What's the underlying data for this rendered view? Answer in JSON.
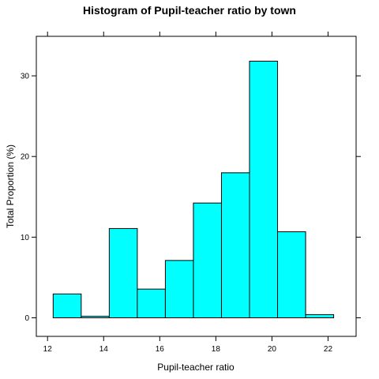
{
  "chart_data": {
    "type": "bar",
    "title": "Histogram of Pupil-teacher ratio by town",
    "xlabel": "Pupil-teacher ratio",
    "ylabel": "Total Proportion (%)",
    "bin_edges": [
      12.2,
      13.2,
      14.2,
      15.2,
      16.2,
      17.2,
      18.2,
      19.2,
      20.2,
      21.2,
      22.2
    ],
    "values": [
      2.96,
      0.2,
      11.07,
      3.56,
      7.11,
      14.23,
      17.98,
      31.82,
      10.67,
      0.4
    ],
    "xlim": [
      11.6,
      23.0
    ],
    "ylim": [
      -2.3,
      34.9
    ],
    "xticks": [
      12,
      14,
      16,
      18,
      20,
      22
    ],
    "yticks": [
      0,
      10,
      20,
      30
    ],
    "bar_color": "#00ffff",
    "grid": false
  }
}
